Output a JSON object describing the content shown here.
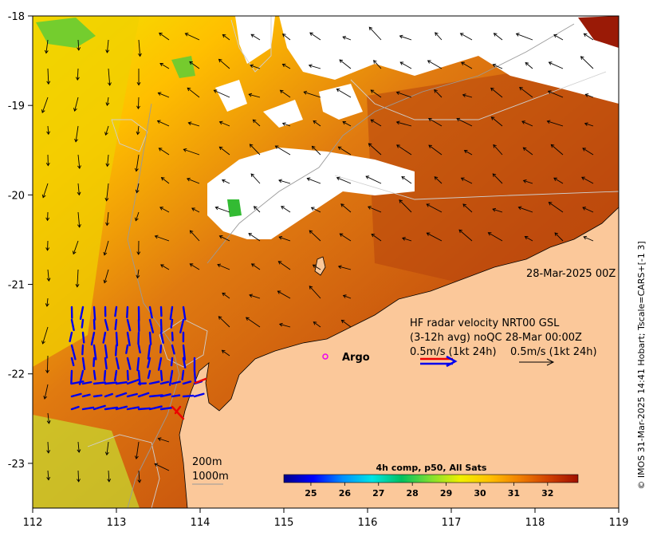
{
  "axes": {
    "x_ticks": [
      "112",
      "113",
      "114",
      "115",
      "116",
      "117",
      "118",
      "119"
    ],
    "y_ticks": [
      "-18",
      "-19",
      "-20",
      "-21",
      "-22",
      "-23"
    ],
    "lon_range": [
      112,
      119
    ],
    "lat_range": [
      -23.5,
      -18
    ]
  },
  "credit": "© IMOS 31-Mar-2025 14:41 Hobart; Tscale=CARS+[-1 3]",
  "date_label": "28-Mar-2025 00Z",
  "argo_label": "Argo",
  "radar_legend": {
    "line1": "HF radar velocity  NRT00 GSL",
    "line2": "(3-12h avg) noQC 28-Mar 00:00Z",
    "line3_left": "0.5m/s (1kt 24h)",
    "line3_right": "0.5m/s (1kt 24h)"
  },
  "isobaths": {
    "label_200": "200m",
    "label_1000": "1000m"
  },
  "colorbar": {
    "title": "4h comp, p50, All Sats",
    "ticks": [
      "25",
      "26",
      "27",
      "28",
      "29",
      "30",
      "31",
      "32"
    ],
    "range": [
      24.2,
      32.9
    ],
    "colors": [
      "#00008b",
      "#0000ff",
      "#0090ff",
      "#00e5e5",
      "#00c060",
      "#80e030",
      "#f0f000",
      "#ffc000",
      "#f08000",
      "#d04000",
      "#a01000"
    ]
  },
  "colors": {
    "land": "#fbc89a",
    "cloud": "#ffffff",
    "radar_vectors": "#0000ee",
    "radar_red": "#ee0000",
    "argo": "#ee00ee",
    "current_arrows": "#000000"
  }
}
